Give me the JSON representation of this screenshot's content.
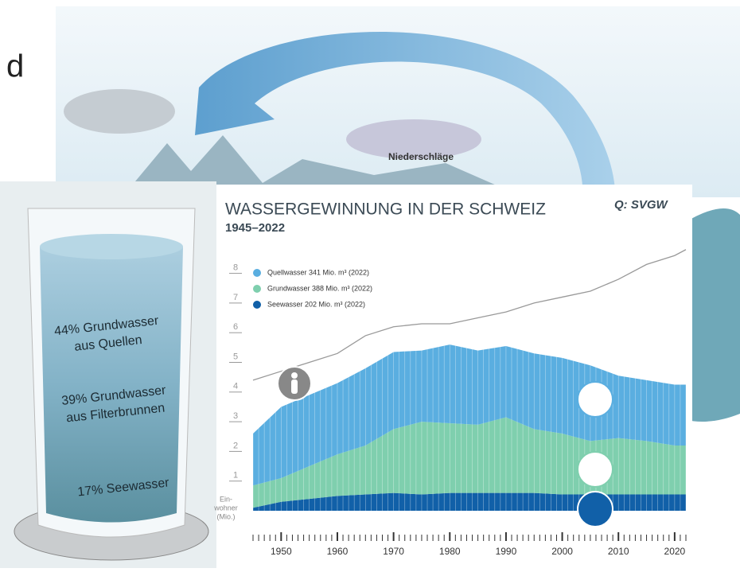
{
  "slide_text": "d",
  "illustration_label": "Niederschläge",
  "glass_labels": [
    [
      "44% Grundwasser",
      "aus Quellen"
    ],
    [
      "39% Grundwasser",
      "aus Filterbrunnen"
    ],
    [
      "17% Seewasser"
    ]
  ],
  "source": "Q: SVGW",
  "chart_data": {
    "type": "area",
    "stacked": true,
    "title": "WASSERGEWINNUNG IN DER SCHWEIZ",
    "subtitle": "1945–2022",
    "ylabel": [
      "Ein-",
      "wohner",
      "(Mio.)"
    ],
    "x": [
      1945,
      1950,
      1955,
      1960,
      1965,
      1970,
      1975,
      1980,
      1985,
      1990,
      1995,
      2000,
      2005,
      2010,
      2015,
      2020,
      2022
    ],
    "xlim": [
      1945,
      2022
    ],
    "xticks": [
      1950,
      1960,
      1970,
      1980,
      1990,
      2000,
      2010,
      2020
    ],
    "ylim": [
      0,
      8.8
    ],
    "yticks": [
      1,
      2,
      3,
      4,
      5,
      6,
      7,
      8
    ],
    "series": [
      {
        "name": "Quellwasser 341 Mio. m³ (2022)",
        "color": "#5aaee0",
        "values": [
          1.75,
          2.4,
          2.4,
          2.4,
          2.6,
          2.6,
          2.4,
          2.65,
          2.5,
          2.4,
          2.55,
          2.55,
          2.55,
          2.1,
          2.05,
          2.05,
          2.05
        ]
      },
      {
        "name": "Grundwasser 388 Mio. m³ (2022)",
        "color": "#7fcfae",
        "values": [
          0.75,
          0.8,
          1.1,
          1.4,
          1.65,
          2.15,
          2.45,
          2.35,
          2.3,
          2.55,
          2.15,
          2.05,
          1.8,
          1.9,
          1.8,
          1.65,
          1.65
        ]
      },
      {
        "name": "Seewasser 202 Mio. m³ (2022)",
        "color": "#1160a8",
        "values": [
          0.1,
          0.3,
          0.4,
          0.5,
          0.55,
          0.6,
          0.55,
          0.6,
          0.6,
          0.6,
          0.6,
          0.55,
          0.55,
          0.55,
          0.55,
          0.55,
          0.55
        ]
      }
    ],
    "population": {
      "color": "#999999",
      "values": [
        4.4,
        4.7,
        5.0,
        5.3,
        5.9,
        6.2,
        6.3,
        6.3,
        6.5,
        6.7,
        7.0,
        7.2,
        7.4,
        7.8,
        8.3,
        8.6,
        8.8
      ]
    }
  }
}
